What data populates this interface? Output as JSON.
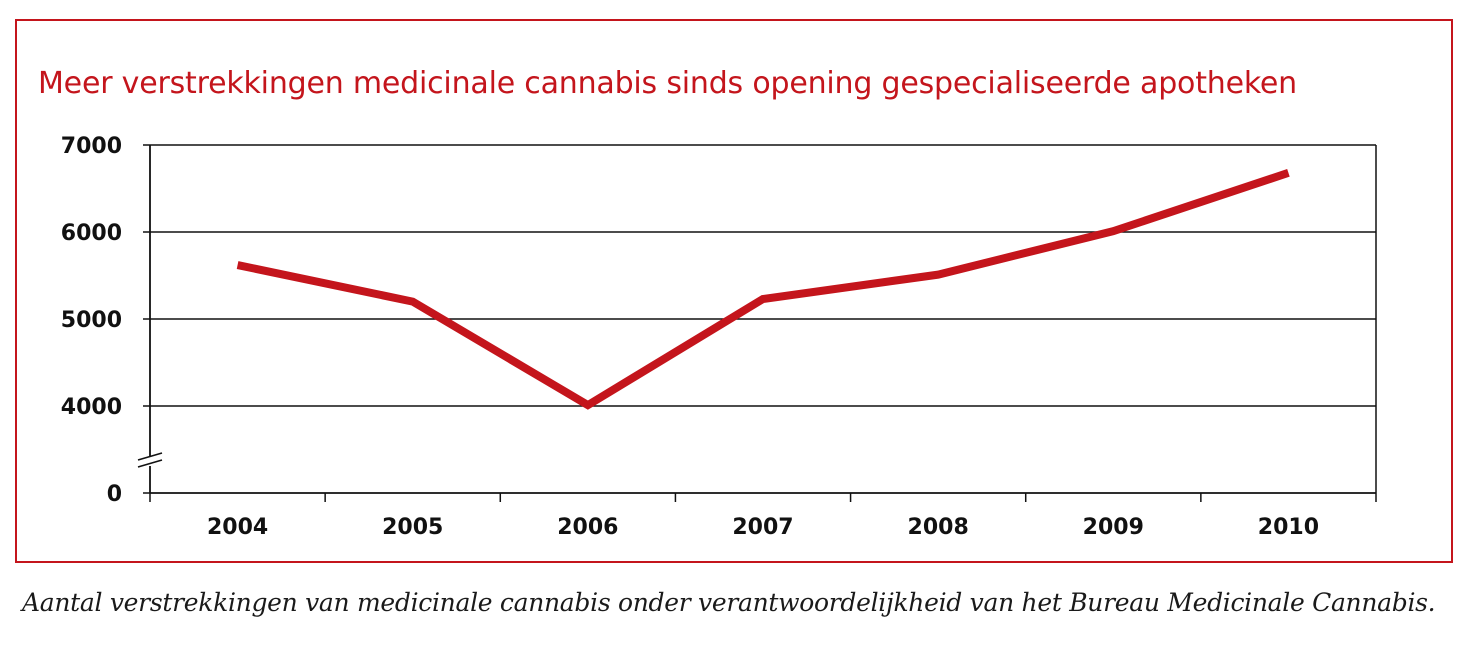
{
  "chart_data": {
    "type": "line",
    "title": "Meer verstrekkingen medicinale cannabis sinds opening gespecialiseerde apotheken",
    "caption": "Aantal verstrekkingen van medicinale cannabis onder verantwoordelijkheid van het Bureau Medicinale Cannabis.",
    "categories": [
      "2004",
      "2005",
      "2006",
      "2007",
      "2008",
      "2009",
      "2010"
    ],
    "series": [
      {
        "values": [
          5620,
          5200,
          4010,
          5230,
          5510,
          6010,
          6680
        ]
      }
    ],
    "y_ticks": [
      "0",
      "4000",
      "5000",
      "6000",
      "7000"
    ],
    "y_tick_values": [
      0,
      4000,
      5000,
      6000,
      7000
    ],
    "ylim": [
      0,
      7000
    ],
    "y_axis_break": [
      0,
      4000
    ],
    "xlabel": "",
    "ylabel": "",
    "grid": true,
    "legend": "none",
    "line_color": "#c4151c",
    "accent_color": "#c4151c"
  }
}
